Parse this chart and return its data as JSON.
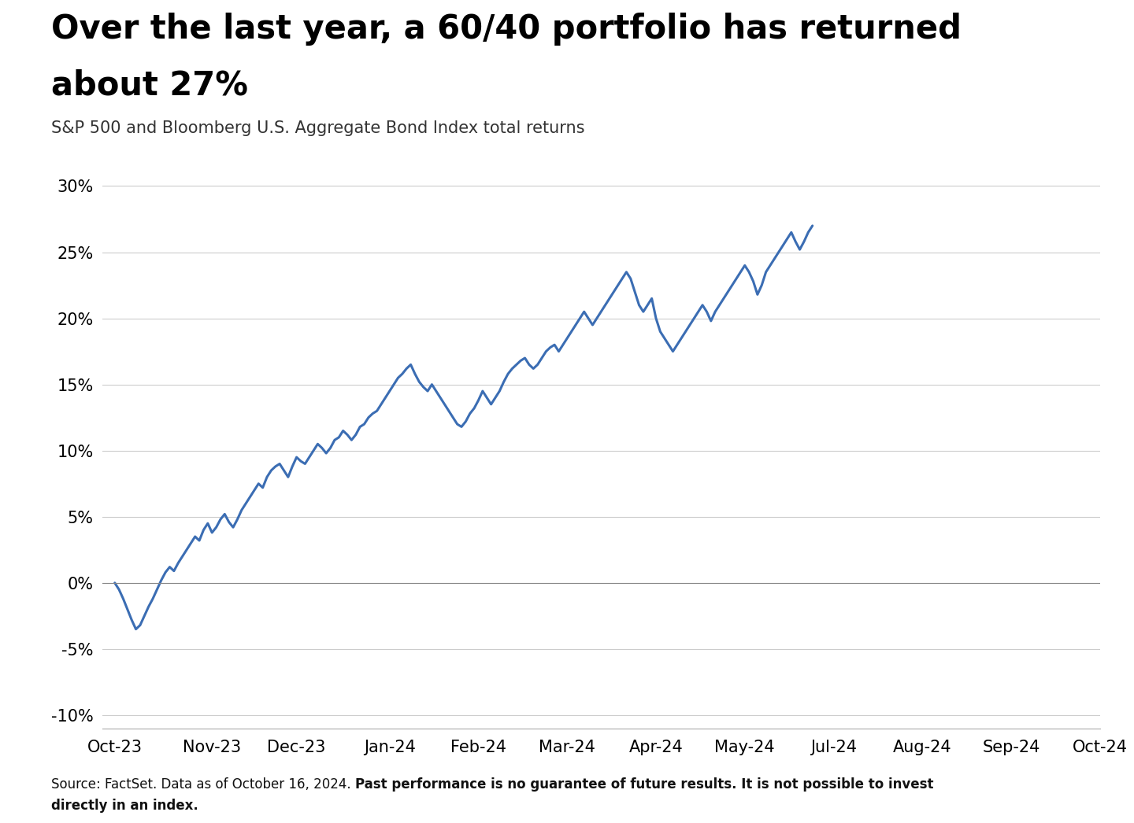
{
  "title_line1": "Over the last year, a 60/40 portfolio has returned",
  "title_line2": "about 27%",
  "subtitle": "S&P 500 and Bloomberg U.S. Aggregate Bond Index total returns",
  "footnote_normal": "Source: FactSet. Data as of October 16, 2024. ",
  "footnote_bold": "Past performance is no guarantee of future results. It is not possible to invest directly in an index.",
  "x_labels": [
    "Oct-23",
    "Nov-23",
    "Dec-23",
    "Jan-24",
    "Feb-24",
    "Mar-24",
    "Apr-24",
    "May-24",
    "Jul-24",
    "Aug-24",
    "Sep-24",
    "Oct-24"
  ],
  "x_tick_positions": [
    0,
    23,
    43,
    65,
    86,
    107,
    128,
    149,
    170,
    191,
    212,
    233
  ],
  "y_ticks": [
    -10,
    -5,
    0,
    5,
    10,
    15,
    20,
    25,
    30
  ],
  "ylim": [
    -11,
    31
  ],
  "line_color": "#3B6DB3",
  "line_width": 2.2,
  "background_color": "#ffffff",
  "values": [
    0.0,
    -0.5,
    -1.2,
    -2.0,
    -2.8,
    -3.5,
    -3.2,
    -2.5,
    -1.8,
    -1.2,
    -0.5,
    0.2,
    0.8,
    1.2,
    0.9,
    1.5,
    2.0,
    2.5,
    3.0,
    3.5,
    3.2,
    4.0,
    4.5,
    3.8,
    4.2,
    4.8,
    5.2,
    4.6,
    4.2,
    4.8,
    5.5,
    6.0,
    6.5,
    7.0,
    7.5,
    7.2,
    8.0,
    8.5,
    8.8,
    9.0,
    8.5,
    8.0,
    8.8,
    9.5,
    9.2,
    9.0,
    9.5,
    10.0,
    10.5,
    10.2,
    9.8,
    10.2,
    10.8,
    11.0,
    11.5,
    11.2,
    10.8,
    11.2,
    11.8,
    12.0,
    12.5,
    12.8,
    13.0,
    13.5,
    14.0,
    14.5,
    15.0,
    15.5,
    15.8,
    16.2,
    16.5,
    15.8,
    15.2,
    14.8,
    14.5,
    15.0,
    14.5,
    14.0,
    13.5,
    13.0,
    12.5,
    12.0,
    11.8,
    12.2,
    12.8,
    13.2,
    13.8,
    14.5,
    14.0,
    13.5,
    14.0,
    14.5,
    15.2,
    15.8,
    16.2,
    16.5,
    16.8,
    17.0,
    16.5,
    16.2,
    16.5,
    17.0,
    17.5,
    17.8,
    18.0,
    17.5,
    18.0,
    18.5,
    19.0,
    19.5,
    20.0,
    20.5,
    20.0,
    19.5,
    20.0,
    20.5,
    21.0,
    21.5,
    22.0,
    22.5,
    23.0,
    23.5,
    23.0,
    22.0,
    21.0,
    20.5,
    21.0,
    21.5,
    20.0,
    19.0,
    18.5,
    18.0,
    17.5,
    18.0,
    18.5,
    19.0,
    19.5,
    20.0,
    20.5,
    21.0,
    20.5,
    19.8,
    20.5,
    21.0,
    21.5,
    22.0,
    22.5,
    23.0,
    23.5,
    24.0,
    23.5,
    22.8,
    21.8,
    22.5,
    23.5,
    24.0,
    24.5,
    25.0,
    25.5,
    26.0,
    26.5,
    25.8,
    25.2,
    25.8,
    26.5,
    27.0
  ]
}
